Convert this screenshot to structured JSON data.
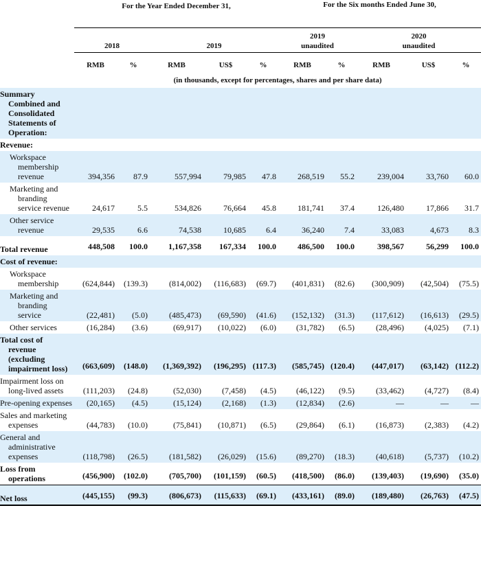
{
  "header": {
    "groups": [
      "For the Year Ended December 31,",
      "For the Six months Ended June 30,"
    ],
    "years": [
      {
        "year": "2018"
      },
      {
        "year": "2019"
      },
      {
        "year": "2019",
        "status": "unaudited"
      },
      {
        "year": "2020",
        "status": "unaudited"
      }
    ],
    "units": [
      "RMB",
      "%",
      "RMB",
      "US$",
      "%",
      "RMB",
      "%",
      "RMB",
      "US$",
      "%"
    ],
    "note": "(in thousands, except for percentages, shares and per share data)"
  },
  "rows": [
    {
      "label": "Summary Combined and Consolidated Statements of Operation:",
      "section": true
    },
    {
      "label": "Revenue:",
      "section": true
    },
    {
      "label": "Workspace membership revenue",
      "indent": true,
      "values": [
        "394,356",
        "87.9",
        "557,994",
        "79,985",
        "47.8",
        "268,519",
        "55.2",
        "239,004",
        "33,760",
        "60.0"
      ]
    },
    {
      "label": "Marketing and branding service revenue",
      "indent": true,
      "values": [
        "24,617",
        "5.5",
        "534,826",
        "76,664",
        "45.8",
        "181,741",
        "37.4",
        "126,480",
        "17,866",
        "31.7"
      ]
    },
    {
      "label": "Other service revenue",
      "indent": true,
      "values": [
        "29,535",
        "6.6",
        "74,538",
        "10,685",
        "6.4",
        "36,240",
        "7.4",
        "33,083",
        "4,673",
        "8.3"
      ]
    },
    {
      "label": "Total revenue",
      "bold": true,
      "values": [
        "448,508",
        "100.0",
        "1,167,358",
        "167,334",
        "100.0",
        "486,500",
        "100.0",
        "398,567",
        "56,299",
        "100.0"
      ]
    },
    {
      "label": "Cost of revenue:",
      "section": true
    },
    {
      "label": "Workspace membership",
      "indent": true,
      "values": [
        "(624,844)",
        "(139.3)",
        "(814,002)",
        "(116,683)",
        "(69.7)",
        "(401,831)",
        "(82.6)",
        "(300,909)",
        "(42,504)",
        "(75.5)"
      ]
    },
    {
      "label": "Marketing and branding service",
      "indent": true,
      "values": [
        "(22,481)",
        "(5.0)",
        "(485,473)",
        "(69,590)",
        "(41.6)",
        "(152,132)",
        "(31.3)",
        "(117,612)",
        "(16,613)",
        "(29.5)"
      ]
    },
    {
      "label": "Other services",
      "indent": true,
      "values": [
        "(16,284)",
        "(3.6)",
        "(69,917)",
        "(10,022)",
        "(6.0)",
        "(31,782)",
        "(6.5)",
        "(28,496)",
        "(4,025)",
        "(7.1)"
      ]
    },
    {
      "label": "Total cost of revenue (excluding impairment loss)",
      "bold": true,
      "values": [
        "(663,609)",
        "(148.0)",
        "(1,369,392)",
        "(196,295)",
        "(117.3)",
        "(585,745)",
        "(120.4)",
        "(447,017)",
        "(63,142)",
        "(112.2)"
      ]
    },
    {
      "label": "Impairment loss on long-lived assets",
      "values": [
        "(111,203)",
        "(24.8)",
        "(52,030)",
        "(7,458)",
        "(4.5)",
        "(46,122)",
        "(9.5)",
        "(33,462)",
        "(4,727)",
        "(8.4)"
      ]
    },
    {
      "label": "Pre-opening expenses",
      "values": [
        "(20,165)",
        "(4.5)",
        "(15,124)",
        "(2,168)",
        "(1.3)",
        "(12,834)",
        "(2.6)",
        "—",
        "—",
        "—"
      ]
    },
    {
      "label": "Sales and marketing expenses",
      "values": [
        "(44,783)",
        "(10.0)",
        "(75,841)",
        "(10,871)",
        "(6.5)",
        "(29,864)",
        "(6.1)",
        "(16,873)",
        "(2,383)",
        "(4.2)"
      ]
    },
    {
      "label": "General and administrative expenses",
      "values": [
        "(118,798)",
        "(26.5)",
        "(181,582)",
        "(26,029)",
        "(15.6)",
        "(89,270)",
        "(18.3)",
        "(40,618)",
        "(5,737)",
        "(10.2)"
      ]
    },
    {
      "label": "Loss from operations",
      "bold": true,
      "values": [
        "(456,900)",
        "(102.0)",
        "(705,700)",
        "(101,159)",
        "(60.5)",
        "(418,500)",
        "(86.0)",
        "(139,403)",
        "(19,690)",
        "(35.0)"
      ]
    },
    {
      "label": "Net loss",
      "bold": true,
      "last": true,
      "values": [
        "(445,155)",
        "(99.3)",
        "(806,673)",
        "(115,633)",
        "(69.1)",
        "(433,161)",
        "(89.0)",
        "(189,480)",
        "(26,763)",
        "(47.5)"
      ]
    }
  ]
}
